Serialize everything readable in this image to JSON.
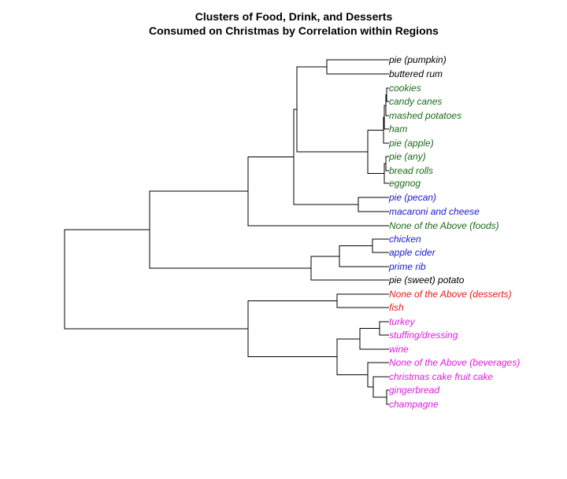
{
  "title": {
    "line1": "Clusters of Food, Drink, and Desserts",
    "line2": "Consumed on Christmas by Correlation within Regions"
  },
  "colors": {
    "black": "#000000",
    "green": "#1a6b1a",
    "blue": "#1a1acc",
    "red": "#e81a1a",
    "magenta": "#e01ae0"
  },
  "leaves": [
    {
      "label": "pie (pumpkin)",
      "color": "black"
    },
    {
      "label": "buttered rum",
      "color": "black"
    },
    {
      "label": "cookies",
      "color": "green"
    },
    {
      "label": "candy canes",
      "color": "green"
    },
    {
      "label": "mashed potatoes",
      "color": "green"
    },
    {
      "label": "ham",
      "color": "green"
    },
    {
      "label": "pie (apple)",
      "color": "green"
    },
    {
      "label": "pie (any)",
      "color": "green"
    },
    {
      "label": "bread rolls",
      "color": "green"
    },
    {
      "label": "eggnog",
      "color": "green"
    },
    {
      "label": "pie (pecan)",
      "color": "blue"
    },
    {
      "label": "macaroni and cheese",
      "color": "blue"
    },
    {
      "label": "None of the Above (foods)",
      "color": "green"
    },
    {
      "label": "chicken",
      "color": "blue"
    },
    {
      "label": "apple cider",
      "color": "blue"
    },
    {
      "label": "prime rib",
      "color": "blue"
    },
    {
      "label": "pie (sweet) potato",
      "color": "black"
    },
    {
      "label": "None of the Above (desserts)",
      "color": "red"
    },
    {
      "label": "fish",
      "color": "red"
    },
    {
      "label": "turkey",
      "color": "magenta"
    },
    {
      "label": "stuffing/dressing",
      "color": "magenta"
    },
    {
      "label": "wine",
      "color": "magenta"
    },
    {
      "label": "None of the Above (beverages)",
      "color": "magenta"
    },
    {
      "label": "christmas cake fruit cake",
      "color": "magenta"
    },
    {
      "label": "gingerbread",
      "color": "magenta"
    },
    {
      "label": "champagne",
      "color": "magenta"
    }
  ]
}
